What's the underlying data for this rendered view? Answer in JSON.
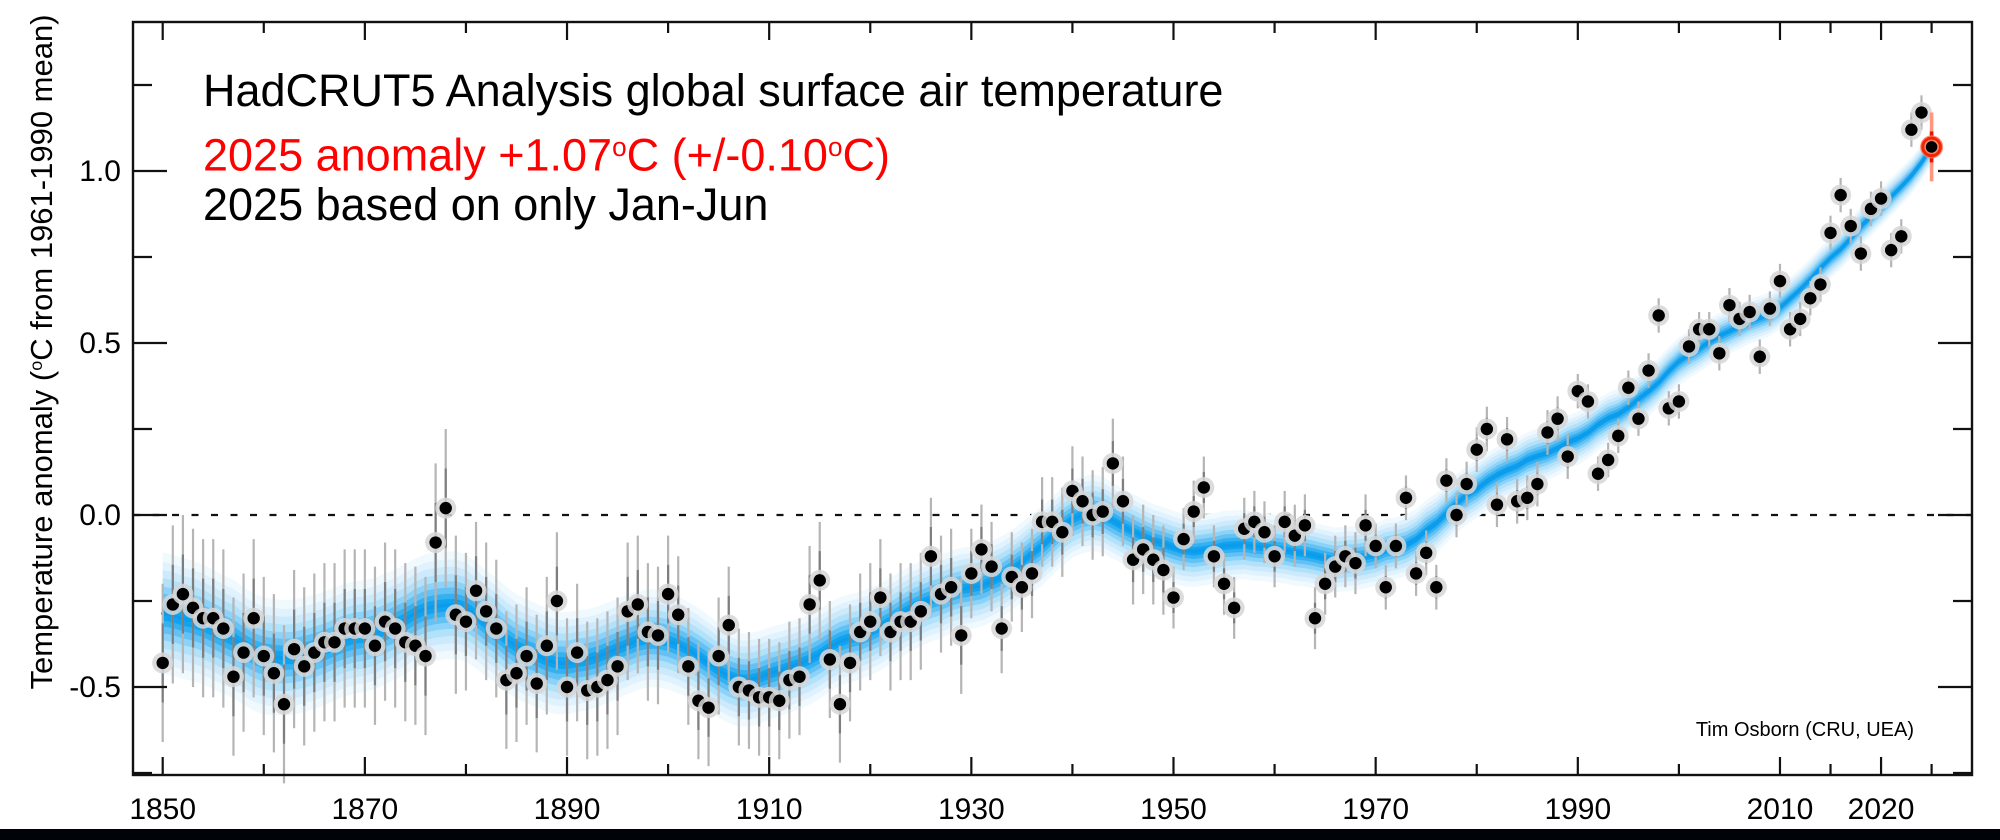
{
  "header": {
    "title": "HadCRUT5 Analysis global surface air temperature",
    "anomaly_parts": [
      {
        "t": "2025 anomaly +1.07"
      },
      {
        "t": "o",
        "sup": true
      },
      {
        "t": "C (+/-0.10"
      },
      {
        "t": "o",
        "sup": true
      },
      {
        "t": "C)"
      }
    ],
    "anomaly_plain": "2025 anomaly +1.07°C (+/-0.10°C)",
    "note": "2025 based on only Jan-Jun"
  },
  "credit": "Tim Osborn (CRU, UEA)",
  "y_axis": {
    "label_parts": [
      {
        "t": "Temperature anomaly ("
      },
      {
        "t": "o",
        "sup": true
      },
      {
        "t": "C from 1961-1990 mean)"
      }
    ],
    "label_plain": "Temperature anomaly (°C from 1961-1990 mean)",
    "majors": [
      {
        "v": 1.0,
        "label": "1.0"
      },
      {
        "v": 0.5,
        "label": "0.5"
      },
      {
        "v": 0.0,
        "label": "0.0"
      },
      {
        "v": -0.5,
        "label": "-0.5"
      }
    ],
    "minors": [
      1.25,
      0.75,
      0.25,
      -0.25,
      -0.75
    ]
  },
  "x_axis": {
    "majors": [
      {
        "year": 1850,
        "label": "1850"
      },
      {
        "year": 1870,
        "label": "1870"
      },
      {
        "year": 1890,
        "label": "1890"
      },
      {
        "year": 1910,
        "label": "1910"
      },
      {
        "year": 1930,
        "label": "1930"
      },
      {
        "year": 1950,
        "label": "1950"
      },
      {
        "year": 1970,
        "label": "1970"
      },
      {
        "year": 1990,
        "label": "1990"
      },
      {
        "year": 2010,
        "label": "2010"
      },
      {
        "year": 2020,
        "label": "2020"
      }
    ],
    "minors": [
      1860,
      1880,
      1900,
      1920,
      1940,
      1960,
      1980,
      2000,
      2015,
      2025
    ]
  },
  "colors": {
    "annotation_red": "#ff0000",
    "highlight_red": "#f32500",
    "highlight_halo": "#fb8168",
    "highlight_bar_light": "#ff9680",
    "highlight_bar_dark": "#e81500",
    "band_core": "#0c9ceb",
    "point_black": "#000000",
    "point_halo": "#d6d6d6",
    "error_light": "#b5b5b5",
    "error_dark": "#7e7e7e",
    "frame": "#111111",
    "bottom_bar": "#000307"
  },
  "chart_data": {
    "type": "scatter",
    "title": "HadCRUT5 Analysis global surface air temperature",
    "annotation": "2025 anomaly +1.07°C (+/-0.10°C)",
    "note": "2025 based on only Jan-Jun",
    "xlabel": "",
    "ylabel": "Temperature anomaly (°C from 1961-1990 mean)",
    "xlim": [
      1847,
      2029
    ],
    "ylim": [
      -0.76,
      1.43
    ],
    "zero_line_dotted": true,
    "grid": false,
    "legend": "none",
    "smoothing": "multi-decadal smoothed blue band through annual values",
    "x_start_year": 1850,
    "x_end_year": 2025,
    "values": [
      -0.43,
      -0.26,
      -0.23,
      -0.27,
      -0.3,
      -0.3,
      -0.33,
      -0.47,
      -0.4,
      -0.3,
      -0.41,
      -0.46,
      -0.55,
      -0.39,
      -0.44,
      -0.4,
      -0.37,
      -0.37,
      -0.33,
      -0.33,
      -0.33,
      -0.38,
      -0.31,
      -0.33,
      -0.37,
      -0.38,
      -0.41,
      -0.08,
      0.02,
      -0.29,
      -0.31,
      -0.22,
      -0.28,
      -0.33,
      -0.48,
      -0.46,
      -0.41,
      -0.49,
      -0.38,
      -0.25,
      -0.5,
      -0.4,
      -0.51,
      -0.5,
      -0.48,
      -0.44,
      -0.28,
      -0.26,
      -0.34,
      -0.35,
      -0.23,
      -0.29,
      -0.44,
      -0.54,
      -0.56,
      -0.41,
      -0.32,
      -0.5,
      -0.51,
      -0.53,
      -0.53,
      -0.54,
      -0.48,
      -0.47,
      -0.26,
      -0.19,
      -0.42,
      -0.55,
      -0.43,
      -0.34,
      -0.31,
      -0.24,
      -0.34,
      -0.31,
      -0.31,
      -0.28,
      -0.12,
      -0.23,
      -0.21,
      -0.35,
      -0.17,
      -0.1,
      -0.15,
      -0.33,
      -0.18,
      -0.21,
      -0.17,
      -0.02,
      -0.02,
      -0.05,
      0.07,
      0.04,
      0.0,
      0.01,
      0.15,
      0.04,
      -0.13,
      -0.1,
      -0.13,
      -0.16,
      -0.24,
      -0.07,
      0.01,
      0.08,
      -0.12,
      -0.2,
      -0.27,
      -0.04,
      -0.02,
      -0.05,
      -0.12,
      -0.02,
      -0.06,
      -0.03,
      -0.3,
      -0.2,
      -0.15,
      -0.12,
      -0.14,
      -0.03,
      -0.09,
      -0.21,
      -0.09,
      0.05,
      -0.17,
      -0.11,
      -0.21,
      0.1,
      0.0,
      0.09,
      0.19,
      0.25,
      0.03,
      0.22,
      0.04,
      0.05,
      0.09,
      0.24,
      0.28,
      0.17,
      0.36,
      0.33,
      0.12,
      0.16,
      0.23,
      0.37,
      0.28,
      0.42,
      0.58,
      0.31,
      0.33,
      0.49,
      0.54,
      0.54,
      0.47,
      0.61,
      0.57,
      0.59,
      0.46,
      0.6,
      0.68,
      0.54,
      0.57,
      0.63,
      0.67,
      0.82,
      0.93,
      0.84,
      0.76,
      0.89,
      0.92,
      0.77,
      0.81,
      1.12,
      1.17,
      1.07
    ],
    "uncertainty_periods": [
      {
        "through": 1879,
        "u": 0.23
      },
      {
        "through": 1899,
        "u": 0.2
      },
      {
        "through": 1929,
        "u": 0.17
      },
      {
        "through": 1949,
        "u": 0.13
      },
      {
        "through": 1969,
        "u": 0.09
      },
      {
        "through": 1989,
        "u": 0.065
      },
      {
        "through": 2024,
        "u": 0.05
      }
    ],
    "highlight": {
      "year": 2025,
      "value": 1.07,
      "uncertainty": 0.1,
      "color": "#ff0000",
      "note": "based on Jan-Jun only"
    }
  }
}
